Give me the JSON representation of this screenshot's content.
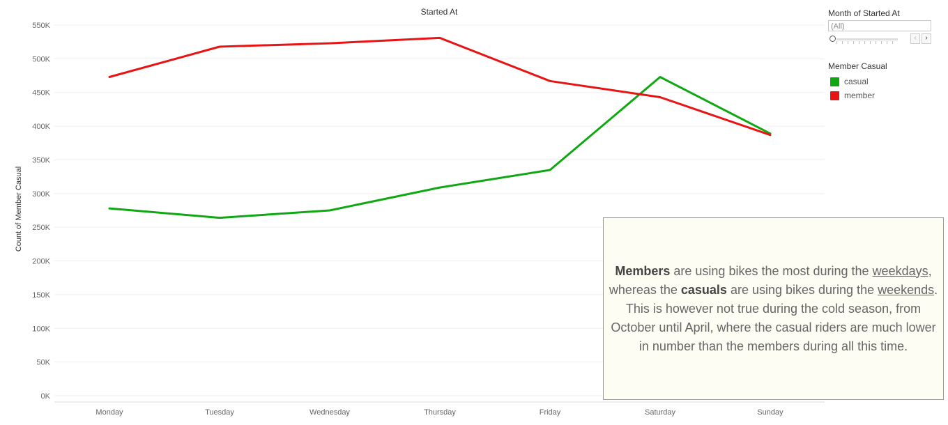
{
  "chart_data": {
    "type": "line",
    "title": "Started At",
    "xlabel": "",
    "ylabel": "Count of Member Casual",
    "categories": [
      "Monday",
      "Tuesday",
      "Wednesday",
      "Thursday",
      "Friday",
      "Saturday",
      "Sunday"
    ],
    "ylim": [
      0,
      550000
    ],
    "yticks": [
      0,
      50000,
      100000,
      150000,
      200000,
      250000,
      300000,
      350000,
      400000,
      450000,
      500000,
      550000
    ],
    "ytick_labels": [
      "0K",
      "50K",
      "100K",
      "150K",
      "200K",
      "250K",
      "300K",
      "350K",
      "400K",
      "450K",
      "500K",
      "550K"
    ],
    "grid": true,
    "legend_position": "right",
    "series": [
      {
        "name": "casual",
        "color": "#10a812",
        "values": [
          278000,
          264000,
          275000,
          309000,
          335000,
          473000,
          389000
        ]
      },
      {
        "name": "member",
        "color": "#e81414",
        "values": [
          473000,
          518000,
          523000,
          531000,
          467000,
          443000,
          387000
        ]
      }
    ]
  },
  "filter": {
    "title": "Month of Started At",
    "selected": "(All)",
    "prev_icon": "‹",
    "next_icon": "›"
  },
  "legend": {
    "title": "Member Casual",
    "items": [
      {
        "label": "casual",
        "color": "#10a812"
      },
      {
        "label": "member",
        "color": "#e81414"
      }
    ]
  },
  "annotation": {
    "members_word": "Members",
    "t1": " are using bikes the most during the ",
    "weekdays_word": "weekdays",
    "t2": ", whereas the ",
    "casuals_word": "casuals",
    "t3": " are using bikes during the ",
    "weekends_word": "weekends",
    "t4": ".",
    "line2": "This is however not true during the cold season, from October until April, where the casual riders are much lower in number than the members during all this time."
  }
}
